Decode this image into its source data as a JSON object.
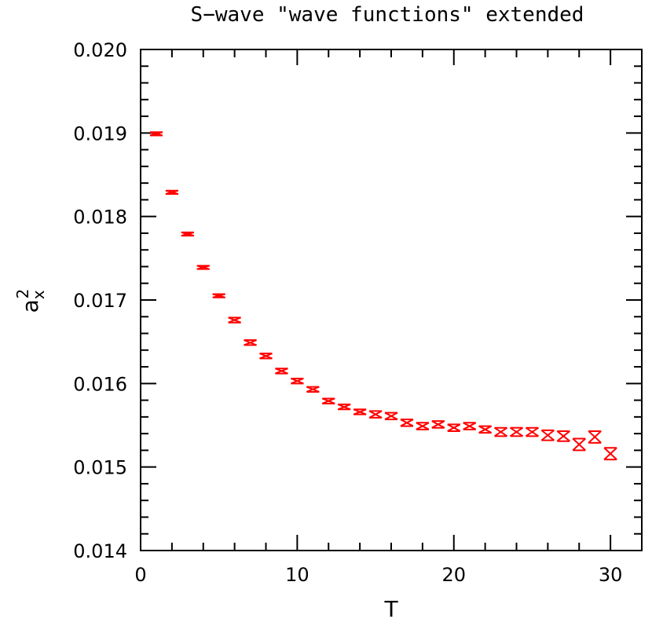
{
  "chart_data": {
    "type": "scatter",
    "title": "S−wave \"wave functions\" extended",
    "xlabel": "T",
    "ylabel": "a",
    "ylabel_superscript": "2",
    "ylabel_subscript": "x",
    "xlim": [
      0,
      32
    ],
    "ylim": [
      0.014,
      0.02
    ],
    "x_ticks": [
      0,
      10,
      20,
      30
    ],
    "x_tick_labels": [
      "0",
      "10",
      "20",
      "30"
    ],
    "y_ticks": [
      0.014,
      0.015,
      0.016,
      0.017,
      0.018,
      0.019,
      0.02
    ],
    "y_tick_labels": [
      "0.014",
      "0.015",
      "0.016",
      "0.017",
      "0.018",
      "0.019",
      "0.020"
    ],
    "grid": false,
    "marker_color": "#ff0000",
    "series": [
      {
        "x": [
          1,
          2,
          3,
          4,
          5,
          6,
          7,
          8,
          9,
          10,
          11,
          12,
          13,
          14,
          15,
          16,
          17,
          18,
          19,
          20,
          21,
          22,
          23,
          24,
          25,
          26,
          27,
          28,
          29,
          30
        ],
        "y": [
          0.01899,
          0.01829,
          0.01779,
          0.01739,
          0.01705,
          0.01676,
          0.01649,
          0.01633,
          0.01615,
          0.01603,
          0.01593,
          0.01579,
          0.01572,
          0.01566,
          0.01563,
          0.01561,
          0.01553,
          0.01549,
          0.01551,
          0.01547,
          0.01549,
          0.01545,
          0.01542,
          0.01542,
          0.01542,
          0.01538,
          0.01537,
          0.01527,
          0.01536,
          0.01516
        ],
        "yerr": [
          2e-05,
          2e-05,
          2e-05,
          2e-05,
          2e-05,
          3e-05,
          3e-05,
          3e-05,
          3e-05,
          3e-05,
          3e-05,
          3e-05,
          3e-05,
          3e-05,
          4e-05,
          4e-05,
          4e-05,
          4e-05,
          4e-05,
          4e-05,
          4e-05,
          4e-05,
          5e-05,
          5e-05,
          5e-05,
          6e-05,
          6e-05,
          7e-05,
          7e-05,
          7e-05
        ]
      }
    ]
  }
}
